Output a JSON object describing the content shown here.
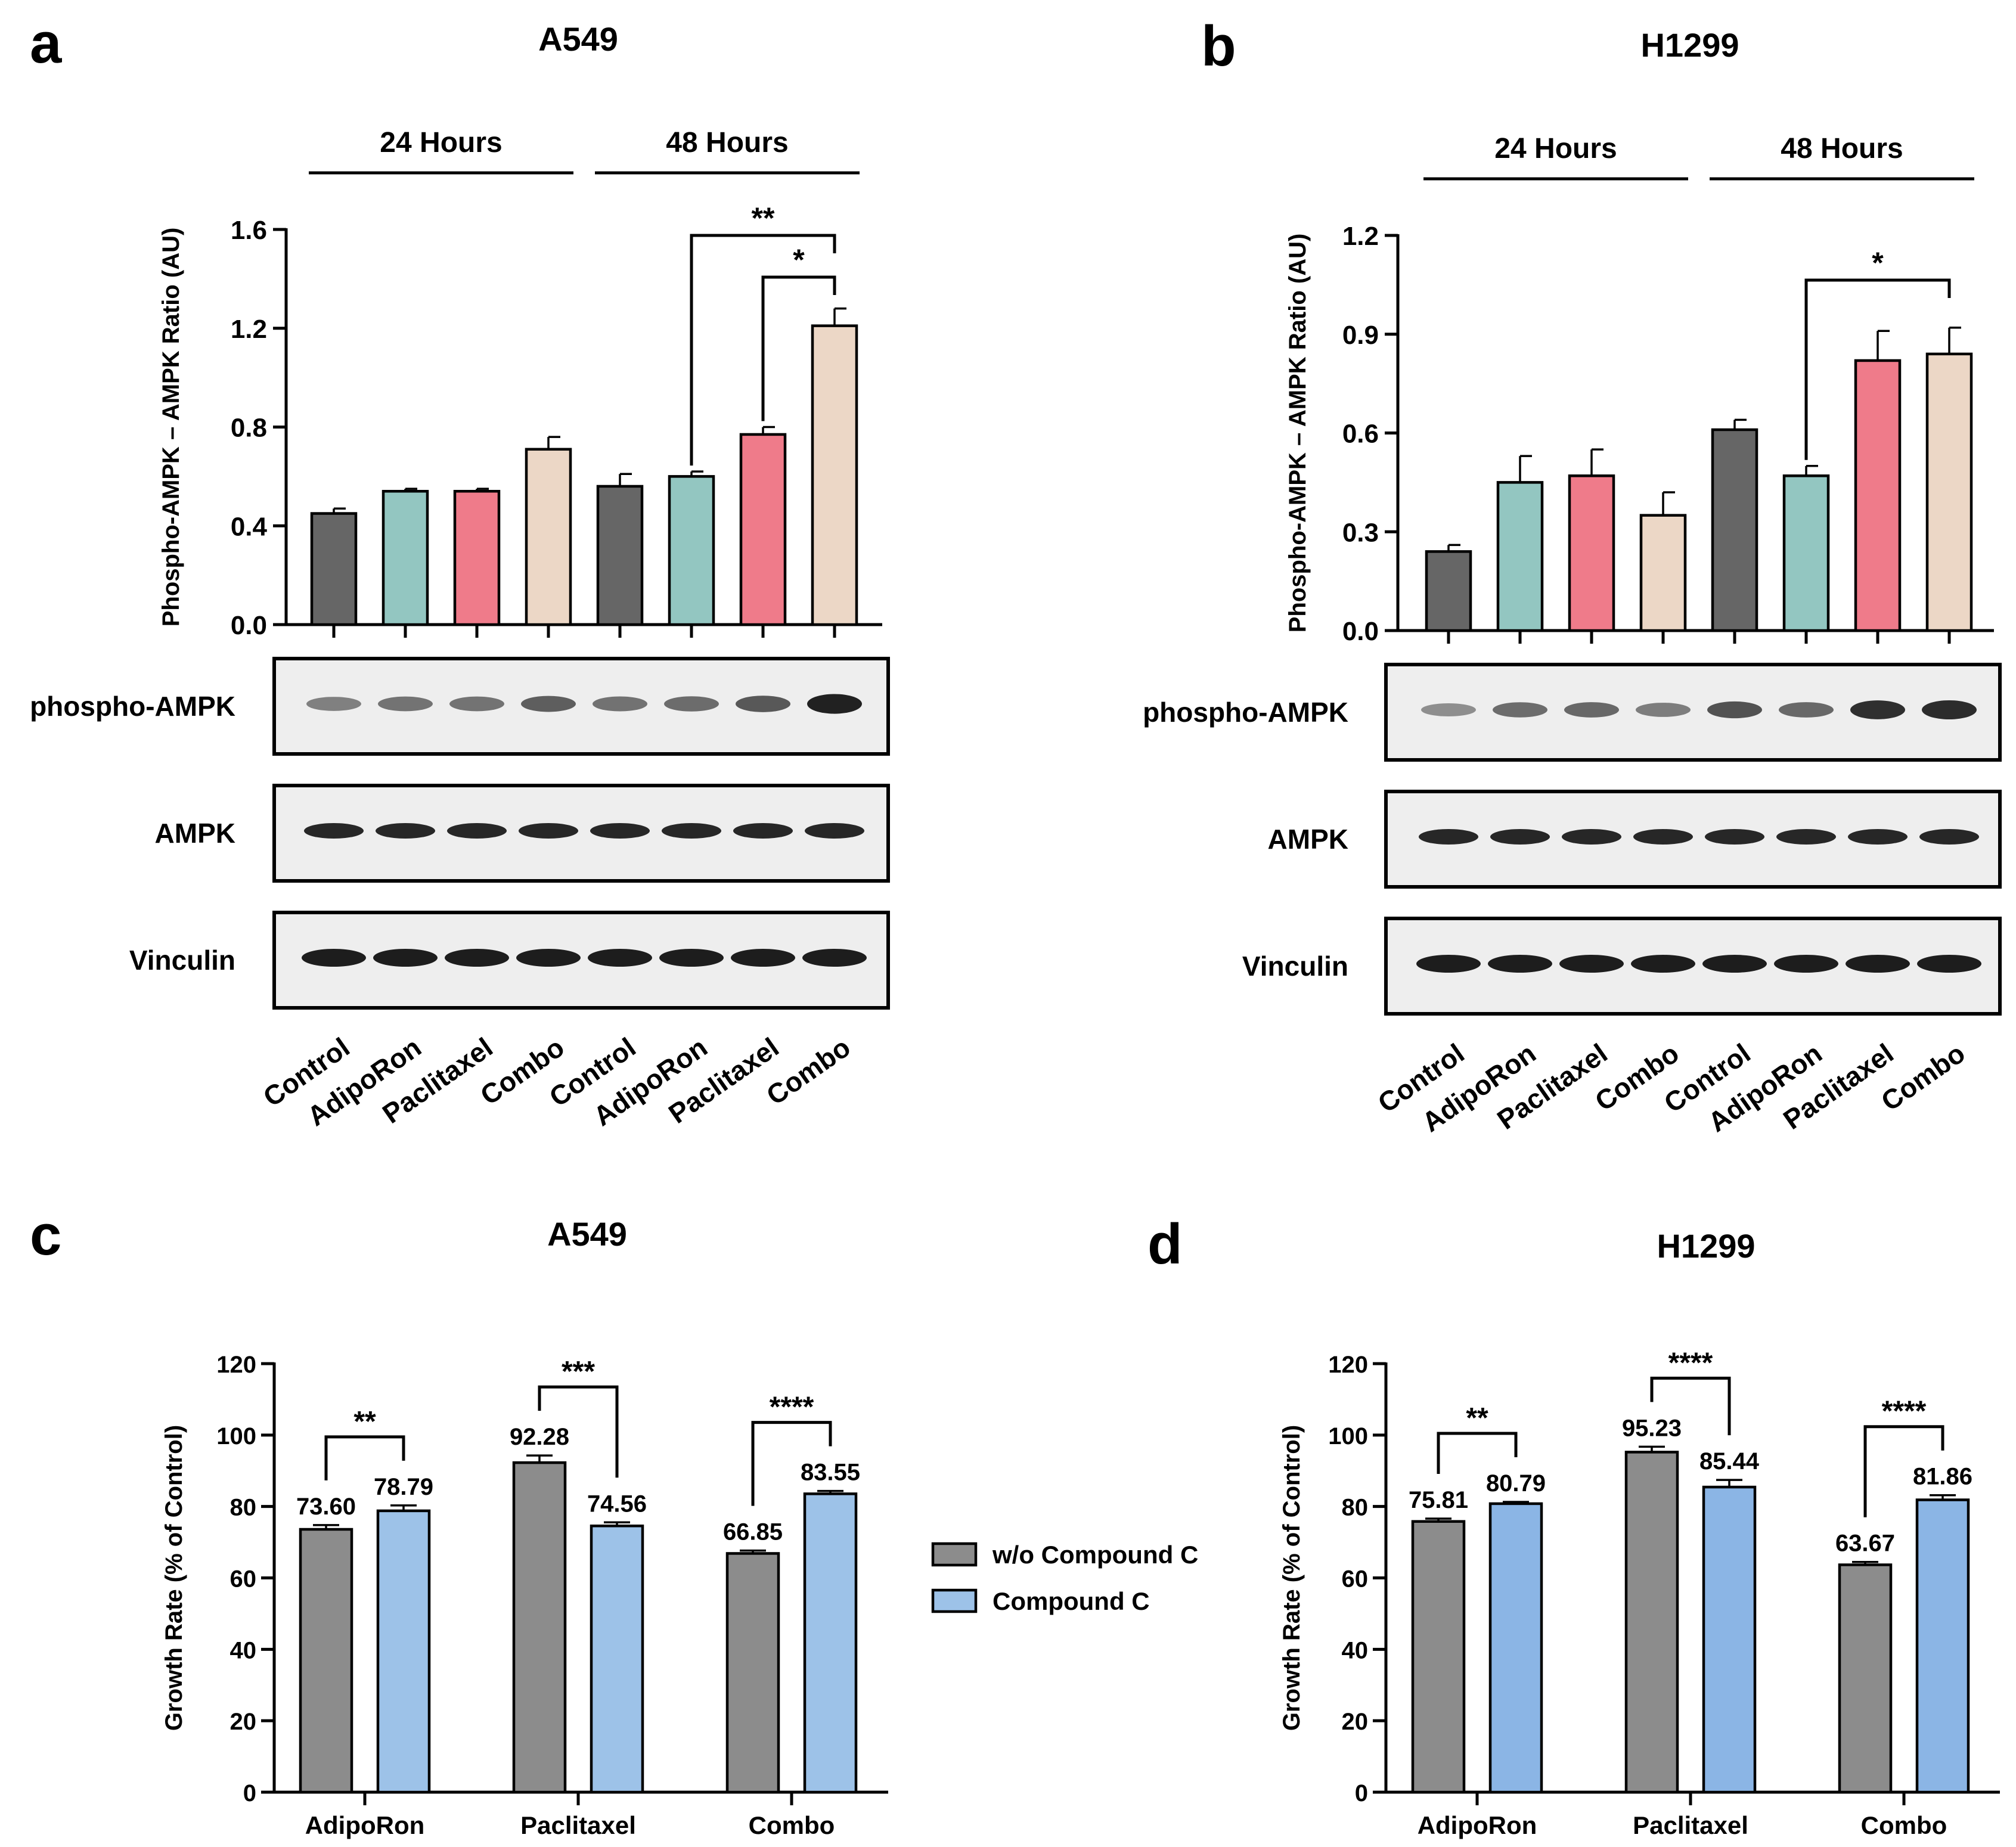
{
  "chart_data": [
    {
      "panel": "a",
      "type": "bar",
      "title": "A549",
      "ylabel": "Phospho-AMPK – AMPK  Ratio (AU)",
      "ylim": [
        0,
        1.6
      ],
      "yticks": [
        "0.0",
        "0.4",
        "0.8",
        "1.2",
        "1.6"
      ],
      "periods": [
        "24 Hours",
        "48 Hours"
      ],
      "categories": [
        "Control",
        "AdipoRon",
        "Paclitaxel",
        "Combo",
        "Control",
        "AdipoRon",
        "Paclitaxel",
        "Combo"
      ],
      "values": [
        0.45,
        0.54,
        0.54,
        0.71,
        0.56,
        0.6,
        0.77,
        1.21
      ],
      "errors": [
        0.02,
        0.01,
        0.01,
        0.05,
        0.05,
        0.02,
        0.03,
        0.07
      ],
      "colors": [
        "#666666",
        "#93c6c1",
        "#ef7b8a",
        "#ecd7c6",
        "#666666",
        "#93c6c1",
        "#ef7b8a",
        "#ecd7c6"
      ],
      "significance": [
        {
          "from": 5,
          "to": 7,
          "label": "**"
        },
        {
          "from": 6,
          "to": 7,
          "label": "*"
        }
      ],
      "blots": [
        "phospho-AMPK",
        "AMPK",
        "Vinculin"
      ]
    },
    {
      "panel": "b",
      "type": "bar",
      "title": "H1299",
      "ylabel": "Phospho-AMPK – AMPK  Ratio (AU)",
      "ylim": [
        0,
        1.2
      ],
      "yticks": [
        "0.0",
        "0.3",
        "0.6",
        "0.9",
        "1.2"
      ],
      "periods": [
        "24 Hours",
        "48 Hours"
      ],
      "categories": [
        "Control",
        "AdipoRon",
        "Paclitaxel",
        "Combo",
        "Control",
        "AdipoRon",
        "Paclitaxel",
        "Combo"
      ],
      "values": [
        0.24,
        0.45,
        0.47,
        0.35,
        0.61,
        0.47,
        0.82,
        0.84
      ],
      "errors": [
        0.02,
        0.08,
        0.08,
        0.07,
        0.03,
        0.03,
        0.09,
        0.08
      ],
      "colors": [
        "#666666",
        "#93c6c1",
        "#ef7b8a",
        "#ecd7c6",
        "#666666",
        "#93c6c1",
        "#ef7b8a",
        "#ecd7c6"
      ],
      "significance": [
        {
          "from": 5,
          "to": 7,
          "label": "*"
        }
      ],
      "blots": [
        "phospho-AMPK",
        "AMPK",
        "Vinculin"
      ]
    },
    {
      "panel": "c",
      "type": "bar",
      "title": "A549",
      "ylabel": "Growth Rate (% of Control)",
      "ylim": [
        0,
        120
      ],
      "yticks": [
        "0",
        "20",
        "40",
        "60",
        "80",
        "100",
        "120"
      ],
      "categories": [
        "AdipoRon",
        "Paclitaxel",
        "Combo"
      ],
      "series": [
        {
          "name": "w/o Compound C",
          "color": "#8c8c8c",
          "values": [
            73.6,
            92.28,
            66.85
          ],
          "labels": [
            "73.60",
            "92.28",
            "66.85"
          ],
          "errors": [
            1.2,
            2.0,
            0.8
          ]
        },
        {
          "name": "Compound C",
          "color": "#9dc2e8",
          "values": [
            78.79,
            74.56,
            83.55
          ],
          "labels": [
            "78.79",
            "74.56",
            "83.55"
          ],
          "errors": [
            1.5,
            1.0,
            0.8
          ]
        }
      ],
      "significance": [
        "**",
        "***",
        "****"
      ]
    },
    {
      "panel": "d",
      "type": "bar",
      "title": "H1299",
      "ylabel": "Growth Rate (% of Control)",
      "ylim": [
        0,
        120
      ],
      "yticks": [
        "0",
        "20",
        "40",
        "60",
        "80",
        "100",
        "120"
      ],
      "categories": [
        "AdipoRon",
        "Paclitaxel",
        "Combo"
      ],
      "series": [
        {
          "name": "w/o Compound C",
          "color": "#8c8c8c",
          "values": [
            75.81,
            95.23,
            63.67
          ],
          "labels": [
            "75.81",
            "95.23",
            "63.67"
          ],
          "errors": [
            0.8,
            1.5,
            0.8
          ]
        },
        {
          "name": "Compound C",
          "color": "#8bb5e5",
          "values": [
            80.79,
            85.44,
            81.86
          ],
          "labels": [
            "80.79",
            "85.44",
            "81.86"
          ],
          "errors": [
            0.5,
            2.0,
            1.3
          ]
        }
      ],
      "significance": [
        "**",
        "****",
        "****"
      ]
    }
  ],
  "legend": [
    {
      "label": "w/o Compound C",
      "color": "#8c8c8c"
    },
    {
      "label": "Compound C",
      "color": "#9dc2e8"
    }
  ]
}
